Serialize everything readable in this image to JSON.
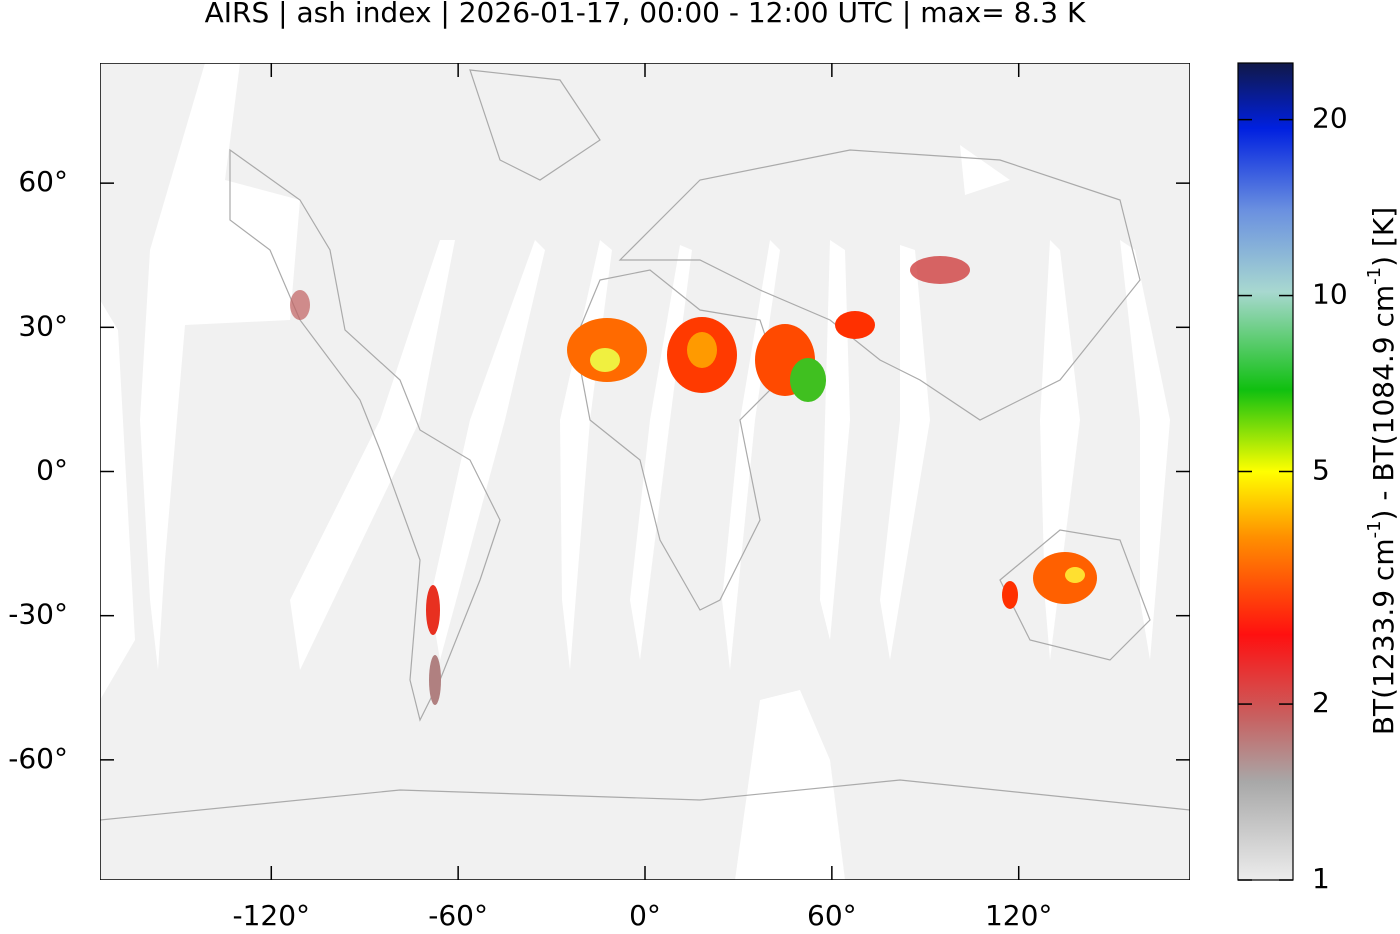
{
  "chart_data": {
    "type": "map",
    "title": "AIRS | ash index | 2026-01-17, 00:00 - 12:00 UTC | max= 8.3 K",
    "xlim": [
      -175,
      175
    ],
    "ylim": [
      -85,
      85
    ],
    "xticks": [
      {
        "value": -120,
        "label": "-120°"
      },
      {
        "value": -60,
        "label": "-60°"
      },
      {
        "value": 0,
        "label": "0°"
      },
      {
        "value": 60,
        "label": "60°"
      },
      {
        "value": 120,
        "label": "120°"
      }
    ],
    "yticks": [
      {
        "value": 60,
        "label": "60°"
      },
      {
        "value": 30,
        "label": "30°"
      },
      {
        "value": 0,
        "label": "0°"
      },
      {
        "value": -30,
        "label": "-30°"
      },
      {
        "value": -60,
        "label": "-60°"
      }
    ],
    "colorbar": {
      "log_scale": true,
      "clim": [
        1,
        25
      ],
      "ticks": [
        1,
        2,
        5,
        10,
        20
      ],
      "label": [
        "BT(1233.9 cm",
        "-1",
        ") - BT(1084.9 cm",
        "-1",
        ") [K]"
      ]
    }
  }
}
